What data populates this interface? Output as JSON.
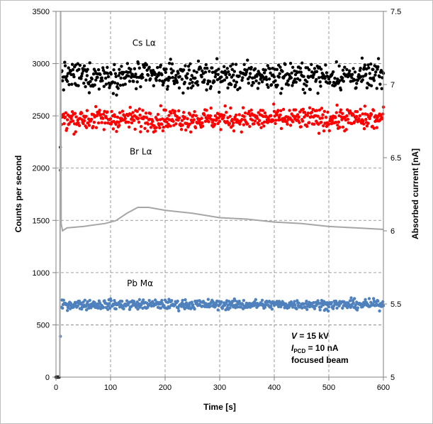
{
  "chart_data": {
    "type": "scatter",
    "xlabel": "Time [s]",
    "ylabel": "Counts per second",
    "ylabel_right": "Absorbed current [nA]",
    "xlim": [
      0,
      600
    ],
    "ylim": [
      0,
      3500
    ],
    "ylim_right": [
      5,
      7.5
    ],
    "x_ticks": [
      "0",
      "100",
      "200",
      "300",
      "400",
      "500",
      "600"
    ],
    "y_ticks": [
      "0",
      "500",
      "1000",
      "1500",
      "2000",
      "2500",
      "3000",
      "3500"
    ],
    "y_right_ticks": [
      "5",
      "5.5",
      "6",
      "6.5",
      "7",
      "7.5"
    ],
    "grid": true,
    "series": [
      {
        "name": "Cs Lα",
        "color": "#000000",
        "mean": 2880,
        "spread": 115,
        "label_at": [
          140,
          3170
        ]
      },
      {
        "name": "Br Lα",
        "color": "#ff0000",
        "mean": 2470,
        "spread": 95,
        "label_at": [
          135,
          2130
        ]
      },
      {
        "name": "Pb Mα",
        "color": "#4f81bd",
        "mean": 695,
        "spread": 42,
        "label_at": [
          130,
          870
        ]
      }
    ],
    "current_curve": {
      "color": "#a6a6a6",
      "axis": "right",
      "points": [
        [
          7,
          5.0
        ],
        [
          8.5,
          7.5
        ],
        [
          9.5,
          6.05
        ],
        [
          12,
          6.0
        ],
        [
          20,
          6.02
        ],
        [
          50,
          6.03
        ],
        [
          90,
          6.05
        ],
        [
          110,
          6.07
        ],
        [
          130,
          6.12
        ],
        [
          150,
          6.16
        ],
        [
          170,
          6.16
        ],
        [
          200,
          6.14
        ],
        [
          250,
          6.12
        ],
        [
          300,
          6.09
        ],
        [
          350,
          6.08
        ],
        [
          400,
          6.06
        ],
        [
          450,
          6.05
        ],
        [
          500,
          6.03
        ],
        [
          550,
          6.02
        ],
        [
          600,
          6.01
        ]
      ]
    },
    "conditions": {
      "line1_italic": "V",
      "line1_rest": " = 15 kV",
      "line2_italic": "I",
      "line2_sub": "PCD",
      "line2_rest": " = 10  nA",
      "line3": "focused beam"
    }
  }
}
